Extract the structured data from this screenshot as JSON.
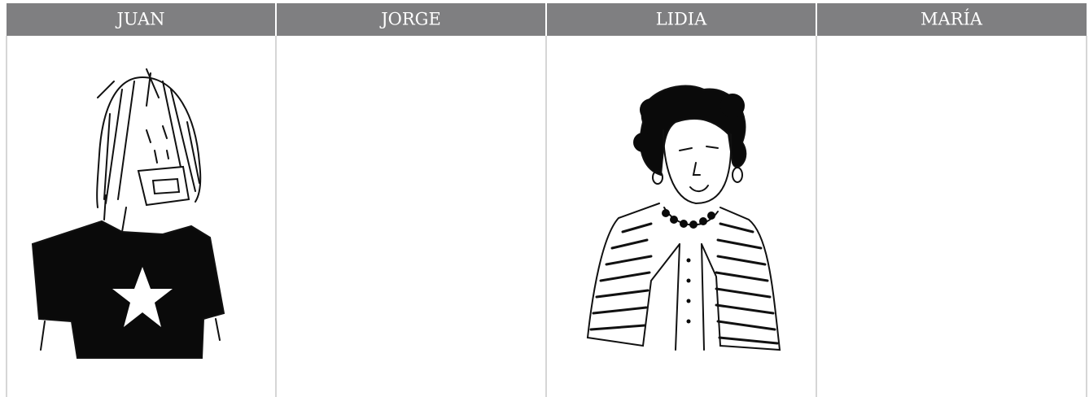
{
  "table": {
    "header": [
      "JUAN",
      "JORGE",
      "LIDIA",
      "MARÍA"
    ]
  }
}
